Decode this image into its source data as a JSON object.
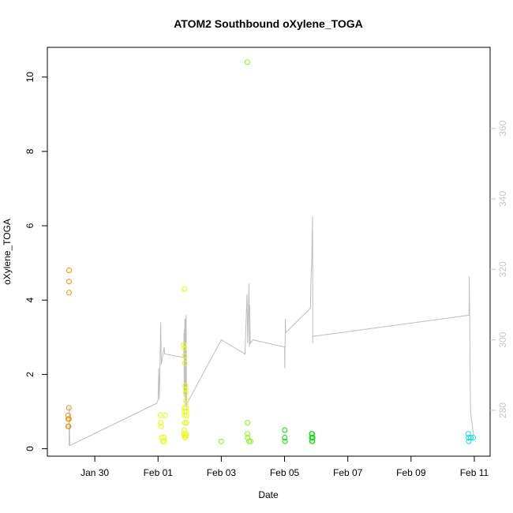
{
  "chart_data": {
    "type": "scatter",
    "title": "ATOM2 Southbound oXylene_TOGA",
    "xlabel": "Date",
    "ylabel": "oXylene_TOGA",
    "x_tick_labels": [
      "Jan 30",
      "Feb 01",
      "Feb 03",
      "Feb 05",
      "Feb 07",
      "Feb 09",
      "Feb 11"
    ],
    "x_tick_values": [
      "2017-01-30",
      "2017-02-01",
      "2017-02-03",
      "2017-02-05",
      "2017-02-07",
      "2017-02-09",
      "2017-02-11"
    ],
    "xlim": [
      "2017-01-28T12:00",
      "2017-02-11T12:00"
    ],
    "ylim": [
      -0.2,
      10.8
    ],
    "y_ticks": [
      0,
      2,
      4,
      6,
      8,
      10
    ],
    "y2lim": [
      267,
      383
    ],
    "y2_ticks": [
      280,
      300,
      320,
      340,
      360
    ],
    "grid": false,
    "legend": "none",
    "colors": {
      "line": "#bebebe",
      "right_axis": "#c8c8c8",
      "orange": "#ff8c00",
      "yellow": "#e6ff00",
      "green_yellow": "#80ff00",
      "green": "#00e600",
      "cyan": "#00e6e6"
    },
    "series": [
      {
        "color_key": "orange",
        "points": [
          [
            "2017-01-29T03:50",
            0.6
          ],
          [
            "2017-01-29T03:50",
            0.8
          ],
          [
            "2017-01-29T03:50",
            0.9
          ],
          [
            "2017-01-29T04:00",
            0.6
          ],
          [
            "2017-01-29T04:10",
            0.6
          ],
          [
            "2017-01-29T04:20",
            1.1
          ],
          [
            "2017-01-29T04:20",
            0.8
          ],
          [
            "2017-01-29T04:30",
            4.2
          ],
          [
            "2017-01-29T04:30",
            4.5
          ],
          [
            "2017-01-29T04:30",
            4.8
          ]
        ]
      },
      {
        "color_key": "yellow",
        "points": [
          [
            "2017-02-01T01:50",
            0.9
          ],
          [
            "2017-02-01T02:00",
            0.7
          ],
          [
            "2017-02-01T02:20",
            0.6
          ],
          [
            "2017-02-01T03:00",
            0.3
          ],
          [
            "2017-02-01T03:40",
            0.2
          ],
          [
            "2017-02-01T04:30",
            0.3
          ],
          [
            "2017-02-01T04:30",
            0.2
          ],
          [
            "2017-02-01T05:20",
            0.9
          ],
          [
            "2017-02-01T20:00",
            4.3
          ],
          [
            "2017-02-01T19:40",
            2.8
          ],
          [
            "2017-02-01T19:40",
            2.7
          ],
          [
            "2017-02-01T20:10",
            2.5
          ],
          [
            "2017-02-01T20:20",
            2.3
          ],
          [
            "2017-02-01T20:00",
            1.1
          ],
          [
            "2017-02-01T20:00",
            1.0
          ],
          [
            "2017-02-01T20:00",
            0.9
          ],
          [
            "2017-02-01T20:20",
            0.7
          ],
          [
            "2017-02-01T19:50",
            0.5
          ],
          [
            "2017-02-01T19:40",
            0.4
          ],
          [
            "2017-02-01T20:10",
            0.35
          ],
          [
            "2017-02-01T20:30",
            0.3
          ],
          [
            "2017-02-01T20:40",
            1.7
          ],
          [
            "2017-02-01T21:00",
            1.6
          ],
          [
            "2017-02-01T21:00",
            1.5
          ],
          [
            "2017-02-01T21:20",
            1.3
          ],
          [
            "2017-02-01T21:20",
            1.1
          ],
          [
            "2017-02-01T21:30",
            1.0
          ],
          [
            "2017-02-01T21:40",
            0.9
          ],
          [
            "2017-02-01T21:40",
            0.7
          ],
          [
            "2017-02-01T21:30",
            0.4
          ],
          [
            "2017-02-01T21:10",
            0.35
          ]
        ]
      },
      {
        "color_key": "green_yellow",
        "points": [
          [
            "2017-02-03T00:00",
            0.2
          ],
          [
            "2017-02-03T19:50",
            10.4
          ],
          [
            "2017-02-03T19:50",
            0.7
          ],
          [
            "2017-02-03T19:50",
            0.4
          ],
          [
            "2017-02-03T20:00",
            0.3
          ],
          [
            "2017-02-03T21:00",
            0.2
          ],
          [
            "2017-02-03T22:10",
            0.2
          ]
        ]
      },
      {
        "color_key": "green",
        "points": [
          [
            "2017-02-05T00:10",
            0.5
          ],
          [
            "2017-02-05T00:10",
            0.3
          ],
          [
            "2017-02-05T00:20",
            0.2
          ],
          [
            "2017-02-05T20:40",
            0.4
          ],
          [
            "2017-02-05T20:40",
            0.3
          ],
          [
            "2017-02-05T20:50",
            0.2
          ],
          [
            "2017-02-05T21:00",
            0.4
          ],
          [
            "2017-02-05T21:10",
            0.3
          ],
          [
            "2017-02-05T21:10",
            0.2
          ],
          [
            "2017-02-05T21:20",
            0.3
          ]
        ]
      },
      {
        "color_key": "cyan",
        "points": [
          [
            "2017-02-10T19:20",
            0.4
          ],
          [
            "2017-02-10T19:40",
            0.3
          ],
          [
            "2017-02-10T19:50",
            0.2
          ],
          [
            "2017-02-10T21:20",
            0.3
          ],
          [
            "2017-02-10T23:10",
            0.3
          ]
        ]
      }
    ],
    "altitude_track": {
      "axis": "right",
      "color_key": "line",
      "points": [
        [
          "2017-01-29T04:30",
          270
        ],
        [
          "2017-01-29T04:40",
          281
        ],
        [
          "2017-01-29T05:00",
          270
        ],
        [
          "2017-01-31T23:00",
          282
        ],
        [
          "2017-02-01T00:00",
          283
        ],
        [
          "2017-02-01T00:30",
          292
        ],
        [
          "2017-02-01T01:00",
          283
        ],
        [
          "2017-02-01T01:20",
          289
        ],
        [
          "2017-02-01T02:00",
          305
        ],
        [
          "2017-02-01T02:30",
          293
        ],
        [
          "2017-02-01T04:40",
          298
        ],
        [
          "2017-02-01T05:00",
          296
        ],
        [
          "2017-02-01T19:30",
          295
        ],
        [
          "2017-02-01T19:40",
          302
        ],
        [
          "2017-02-01T19:50",
          284
        ],
        [
          "2017-02-01T20:00",
          303
        ],
        [
          "2017-02-01T20:10",
          286
        ],
        [
          "2017-02-01T20:20",
          306
        ],
        [
          "2017-02-01T20:40",
          281
        ],
        [
          "2017-02-01T20:50",
          306
        ],
        [
          "2017-02-01T21:00",
          283
        ],
        [
          "2017-02-01T21:20",
          307
        ],
        [
          "2017-02-01T21:40",
          280
        ],
        [
          "2017-02-01T22:00",
          282
        ],
        [
          "2017-02-03T00:00",
          300
        ],
        [
          "2017-02-03T18:00",
          296
        ],
        [
          "2017-02-03T19:30",
          313
        ],
        [
          "2017-02-03T20:00",
          299
        ],
        [
          "2017-02-03T21:00",
          316
        ],
        [
          "2017-02-03T21:20",
          298
        ],
        [
          "2017-02-03T21:40",
          300
        ],
        [
          "2017-02-03T21:30",
          310
        ],
        [
          "2017-02-03T22:00",
          299
        ],
        [
          "2017-02-04T00:00",
          300
        ],
        [
          "2017-02-05T00:00",
          298
        ],
        [
          "2017-02-05T00:10",
          292
        ],
        [
          "2017-02-05T00:20",
          298
        ],
        [
          "2017-02-05T00:30",
          301
        ],
        [
          "2017-02-05T00:40",
          306
        ],
        [
          "2017-02-05T00:50",
          302
        ],
        [
          "2017-02-05T19:40",
          309
        ],
        [
          "2017-02-05T20:00",
          316
        ],
        [
          "2017-02-05T20:20",
          320
        ],
        [
          "2017-02-05T20:40",
          321
        ],
        [
          "2017-02-05T21:00",
          331
        ],
        [
          "2017-02-05T21:00",
          325
        ],
        [
          "2017-02-05T21:10",
          335
        ],
        [
          "2017-02-05T21:20",
          326
        ],
        [
          "2017-02-05T21:20",
          299
        ],
        [
          "2017-02-05T21:30",
          301
        ],
        [
          "2017-02-10T20:00",
          307
        ],
        [
          "2017-02-10T20:10",
          318
        ],
        [
          "2017-02-10T20:30",
          306
        ],
        [
          "2017-02-10T21:00",
          282
        ],
        [
          "2017-02-10T21:20",
          279
        ],
        [
          "2017-02-10T23:30",
          273
        ]
      ]
    }
  }
}
